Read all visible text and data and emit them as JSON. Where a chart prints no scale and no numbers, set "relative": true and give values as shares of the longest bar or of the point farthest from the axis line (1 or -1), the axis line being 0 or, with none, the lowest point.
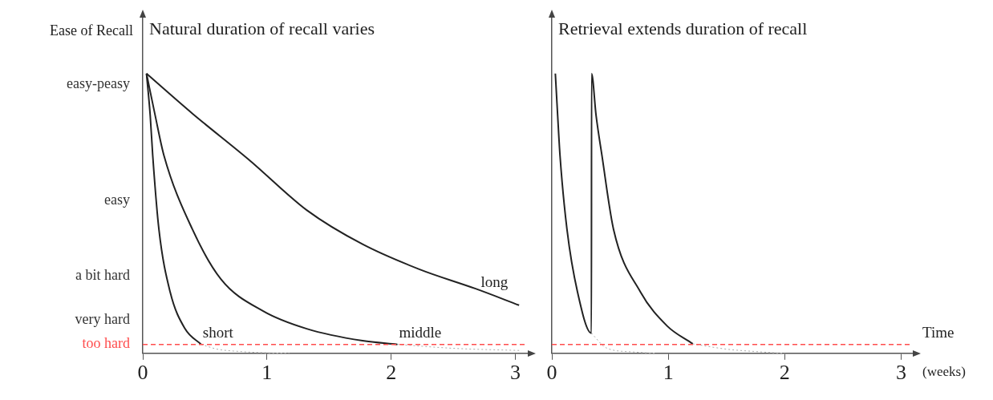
{
  "chart_data": [
    {
      "type": "line",
      "title": "Natural duration of recall varies",
      "ylabel": "Ease of Recall",
      "xlim": [
        0,
        3.1
      ],
      "xticks": [
        0,
        1,
        2,
        3
      ],
      "relative": true,
      "annotations": [
        "easy-peasy",
        "easy",
        "a bit hard",
        "very hard"
      ],
      "grid": false,
      "legend": false,
      "marker": "none",
      "ref_lines": [
        {
          "axis": "y",
          "value": 0.032,
          "label": "too hard",
          "color": "#ff4d4d",
          "line_style": "dashed"
        }
      ],
      "series": [
        {
          "name": "short",
          "color": "#222222",
          "x": [
            0.03,
            0.06,
            0.08,
            0.13,
            0.22,
            0.34,
            0.47
          ],
          "values": [
            1.0,
            0.85,
            0.708,
            0.443,
            0.22,
            0.088,
            0.032
          ]
        },
        {
          "name": "middle",
          "color": "#222222",
          "x": [
            0.03,
            0.1,
            0.17,
            0.4,
            0.63,
            0.97,
            1.32,
            1.77,
            2.05
          ],
          "values": [
            1.0,
            0.85,
            0.708,
            0.443,
            0.265,
            0.151,
            0.088,
            0.045,
            0.032
          ]
        },
        {
          "name": "long",
          "color": "#222222",
          "x": [
            0.03,
            0.4,
            0.86,
            1.32,
            1.77,
            2.23,
            2.68,
            3.03
          ],
          "values": [
            1.0,
            0.857,
            0.69,
            0.512,
            0.39,
            0.3,
            0.231,
            0.172
          ]
        },
        {
          "color": "#aaaaaa",
          "line_style": "dotted",
          "x": [
            0.47,
            0.6,
            0.8,
            1.0,
            1.18
          ],
          "values": [
            0.032,
            0.015,
            0.006,
            0.002,
            0
          ]
        },
        {
          "color": "#aaaaaa",
          "line_style": "dotted",
          "x": [
            2.05,
            2.5,
            3.05
          ],
          "values": [
            0.032,
            0.018,
            0.01
          ]
        }
      ]
    },
    {
      "type": "line",
      "title": "Retrieval extends duration of recall",
      "xlabel": "Time",
      "annotations": [
        "(weeks)"
      ],
      "xlim": [
        0,
        3.1
      ],
      "xticks": [
        0,
        1,
        2,
        3
      ],
      "relative": true,
      "grid": false,
      "legend": false,
      "marker": "none",
      "ref_lines": [
        {
          "axis": "y",
          "value": 0.032,
          "color": "#ff4d4d",
          "line_style": "dashed"
        }
      ],
      "series": [
        {
          "color": "#222222",
          "x": [
            0.03,
            0.05,
            0.07,
            0.13,
            0.22,
            0.34,
            0.341,
            0.38,
            0.43,
            0.53,
            0.76,
            0.99,
            1.21
          ],
          "values": [
            1.0,
            0.85,
            0.708,
            0.443,
            0.22,
            0.072,
            1.0,
            0.85,
            0.708,
            0.443,
            0.22,
            0.098,
            0.034
          ]
        },
        {
          "color": "#aaaaaa",
          "line_style": "dotted",
          "x": [
            0.34,
            0.47,
            0.7,
            0.9
          ],
          "values": [
            0.072,
            0.019,
            0.005,
            0
          ]
        },
        {
          "color": "#aaaaaa",
          "line_style": "dotted",
          "x": [
            1.21,
            1.5,
            1.8,
            2.0
          ],
          "values": [
            0.034,
            0.015,
            0.005,
            0
          ]
        }
      ]
    }
  ]
}
